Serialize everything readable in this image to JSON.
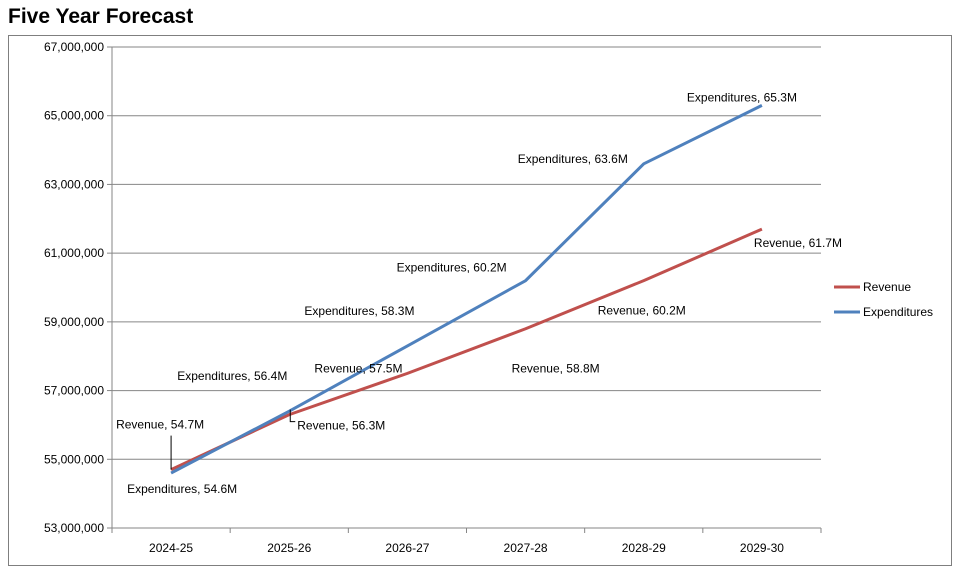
{
  "title": "Five Year Forecast",
  "colors": {
    "revenue": "#c0504d",
    "expenditures": "#4f81bd",
    "grid": "#868686",
    "axis": "#868686"
  },
  "chart_data": {
    "type": "line",
    "categories": [
      "2024-25",
      "2025-26",
      "2026-27",
      "2027-28",
      "2028-29",
      "2029-30"
    ],
    "ylim": [
      53000000,
      67000000
    ],
    "yticks": [
      53000000,
      55000000,
      57000000,
      59000000,
      61000000,
      63000000,
      65000000,
      67000000
    ],
    "ytick_labels": [
      "53,000,000",
      "55,000,000",
      "57,000,000",
      "59,000,000",
      "61,000,000",
      "63,000,000",
      "65,000,000",
      "67,000,000"
    ],
    "grid": true,
    "legend_position": "right",
    "series": [
      {
        "name": "Revenue",
        "values": [
          54700000,
          56300000,
          57500000,
          58800000,
          60200000,
          61700000
        ],
        "labels": [
          "Revenue,  54.7M",
          "Revenue,  56.3M",
          "Revenue,  57.5M",
          "Revenue,  58.8M",
          "Revenue,  60.2M",
          "Revenue,  61.7M"
        ]
      },
      {
        "name": "Expenditures",
        "values": [
          54600000,
          56400000,
          58300000,
          60200000,
          63600000,
          65300000
        ],
        "labels": [
          "Expenditures,  54.6M",
          "Expenditures,  56.4M",
          "Expenditures,  58.3M",
          "Expenditures,  60.2M",
          "Expenditures,  63.6M",
          "Expenditures,  65.3M"
        ]
      }
    ]
  }
}
